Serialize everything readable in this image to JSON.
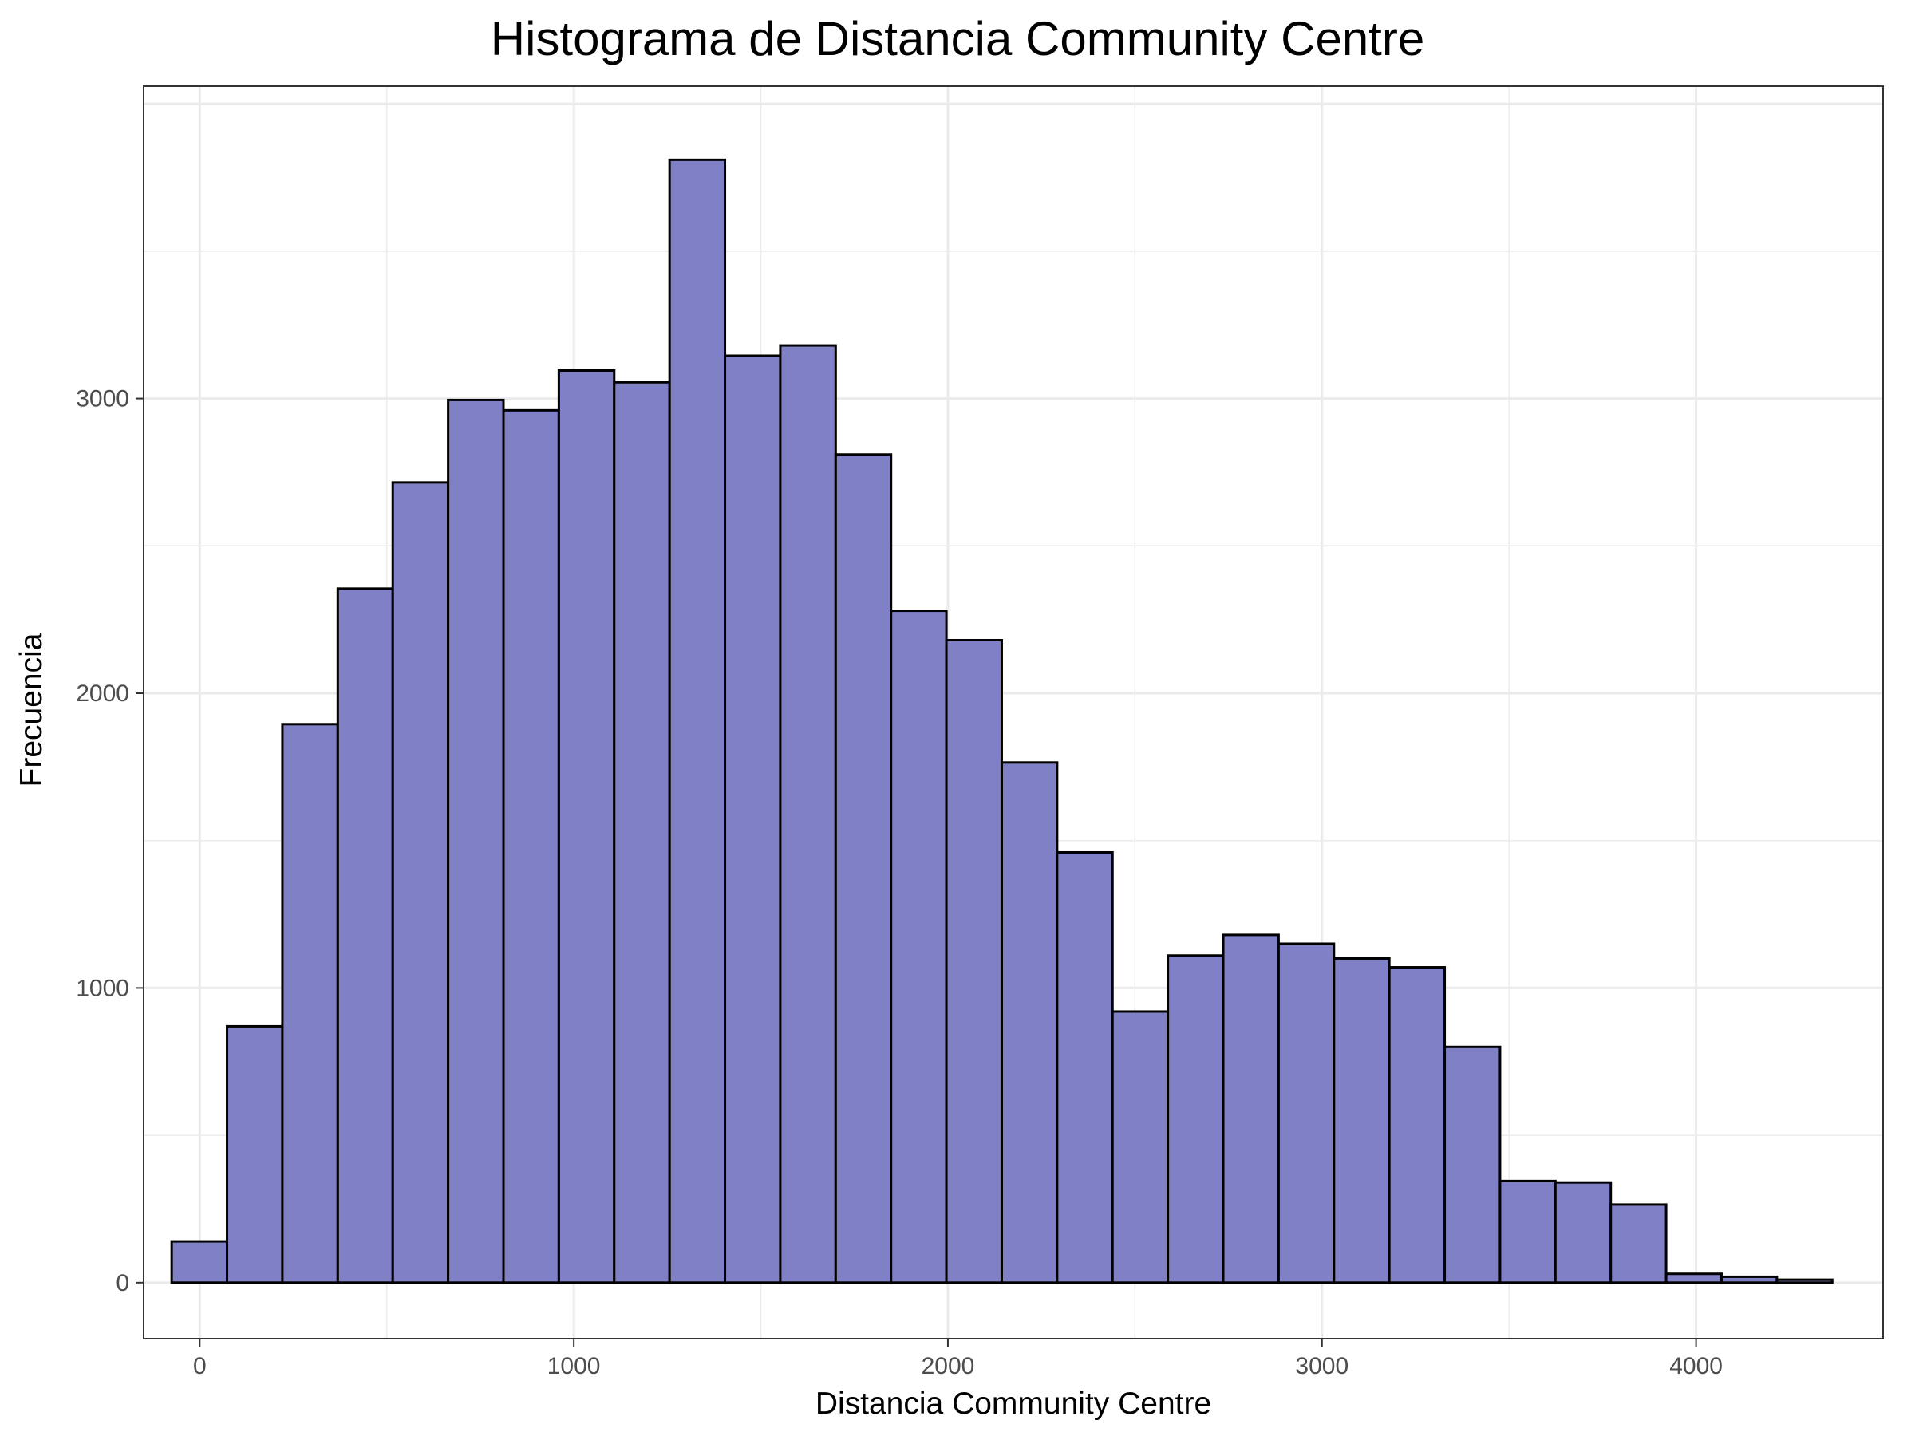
{
  "chart_data": {
    "type": "histogram",
    "title": "Histograma de Distancia Community Centre",
    "xlabel": "Distancia Community Centre",
    "ylabel": "Frecuencia",
    "xlim": [
      -150,
      4500
    ],
    "ylim": [
      -190,
      4060
    ],
    "x_ticks": [
      0,
      1000,
      2000,
      3000,
      4000
    ],
    "y_ticks": [
      0,
      1000,
      2000,
      3000
    ],
    "grid": true,
    "bar_fill": "#8080C6",
    "bar_stroke": "#000000",
    "bins": [
      {
        "x0": -75,
        "x1": 73,
        "count": 140
      },
      {
        "x0": 73,
        "x1": 221,
        "count": 870
      },
      {
        "x0": 221,
        "x1": 369,
        "count": 1895
      },
      {
        "x0": 369,
        "x1": 516,
        "count": 2355
      },
      {
        "x0": 516,
        "x1": 664,
        "count": 2715
      },
      {
        "x0": 664,
        "x1": 812,
        "count": 2995
      },
      {
        "x0": 812,
        "x1": 960,
        "count": 2960
      },
      {
        "x0": 960,
        "x1": 1108,
        "count": 3095
      },
      {
        "x0": 1108,
        "x1": 1256,
        "count": 3055
      },
      {
        "x0": 1256,
        "x1": 1404,
        "count": 3810
      },
      {
        "x0": 1404,
        "x1": 1552,
        "count": 3145
      },
      {
        "x0": 1552,
        "x1": 1700,
        "count": 3180
      },
      {
        "x0": 1700,
        "x1": 1848,
        "count": 2810
      },
      {
        "x0": 1848,
        "x1": 1996,
        "count": 2280
      },
      {
        "x0": 1996,
        "x1": 2144,
        "count": 2180
      },
      {
        "x0": 2144,
        "x1": 2292,
        "count": 1765
      },
      {
        "x0": 2292,
        "x1": 2440,
        "count": 1460
      },
      {
        "x0": 2440,
        "x1": 2588,
        "count": 920
      },
      {
        "x0": 2588,
        "x1": 2736,
        "count": 1110
      },
      {
        "x0": 2736,
        "x1": 2884,
        "count": 1180
      },
      {
        "x0": 2884,
        "x1": 3032,
        "count": 1150
      },
      {
        "x0": 3032,
        "x1": 3180,
        "count": 1100
      },
      {
        "x0": 3180,
        "x1": 3328,
        "count": 1070
      },
      {
        "x0": 3328,
        "x1": 3476,
        "count": 800
      },
      {
        "x0": 3476,
        "x1": 3624,
        "count": 345
      },
      {
        "x0": 3624,
        "x1": 3772,
        "count": 340
      },
      {
        "x0": 3772,
        "x1": 3920,
        "count": 265
      },
      {
        "x0": 3920,
        "x1": 4068,
        "count": 30
      },
      {
        "x0": 4068,
        "x1": 4216,
        "count": 20
      },
      {
        "x0": 4216,
        "x1": 4364,
        "count": 10
      }
    ]
  }
}
